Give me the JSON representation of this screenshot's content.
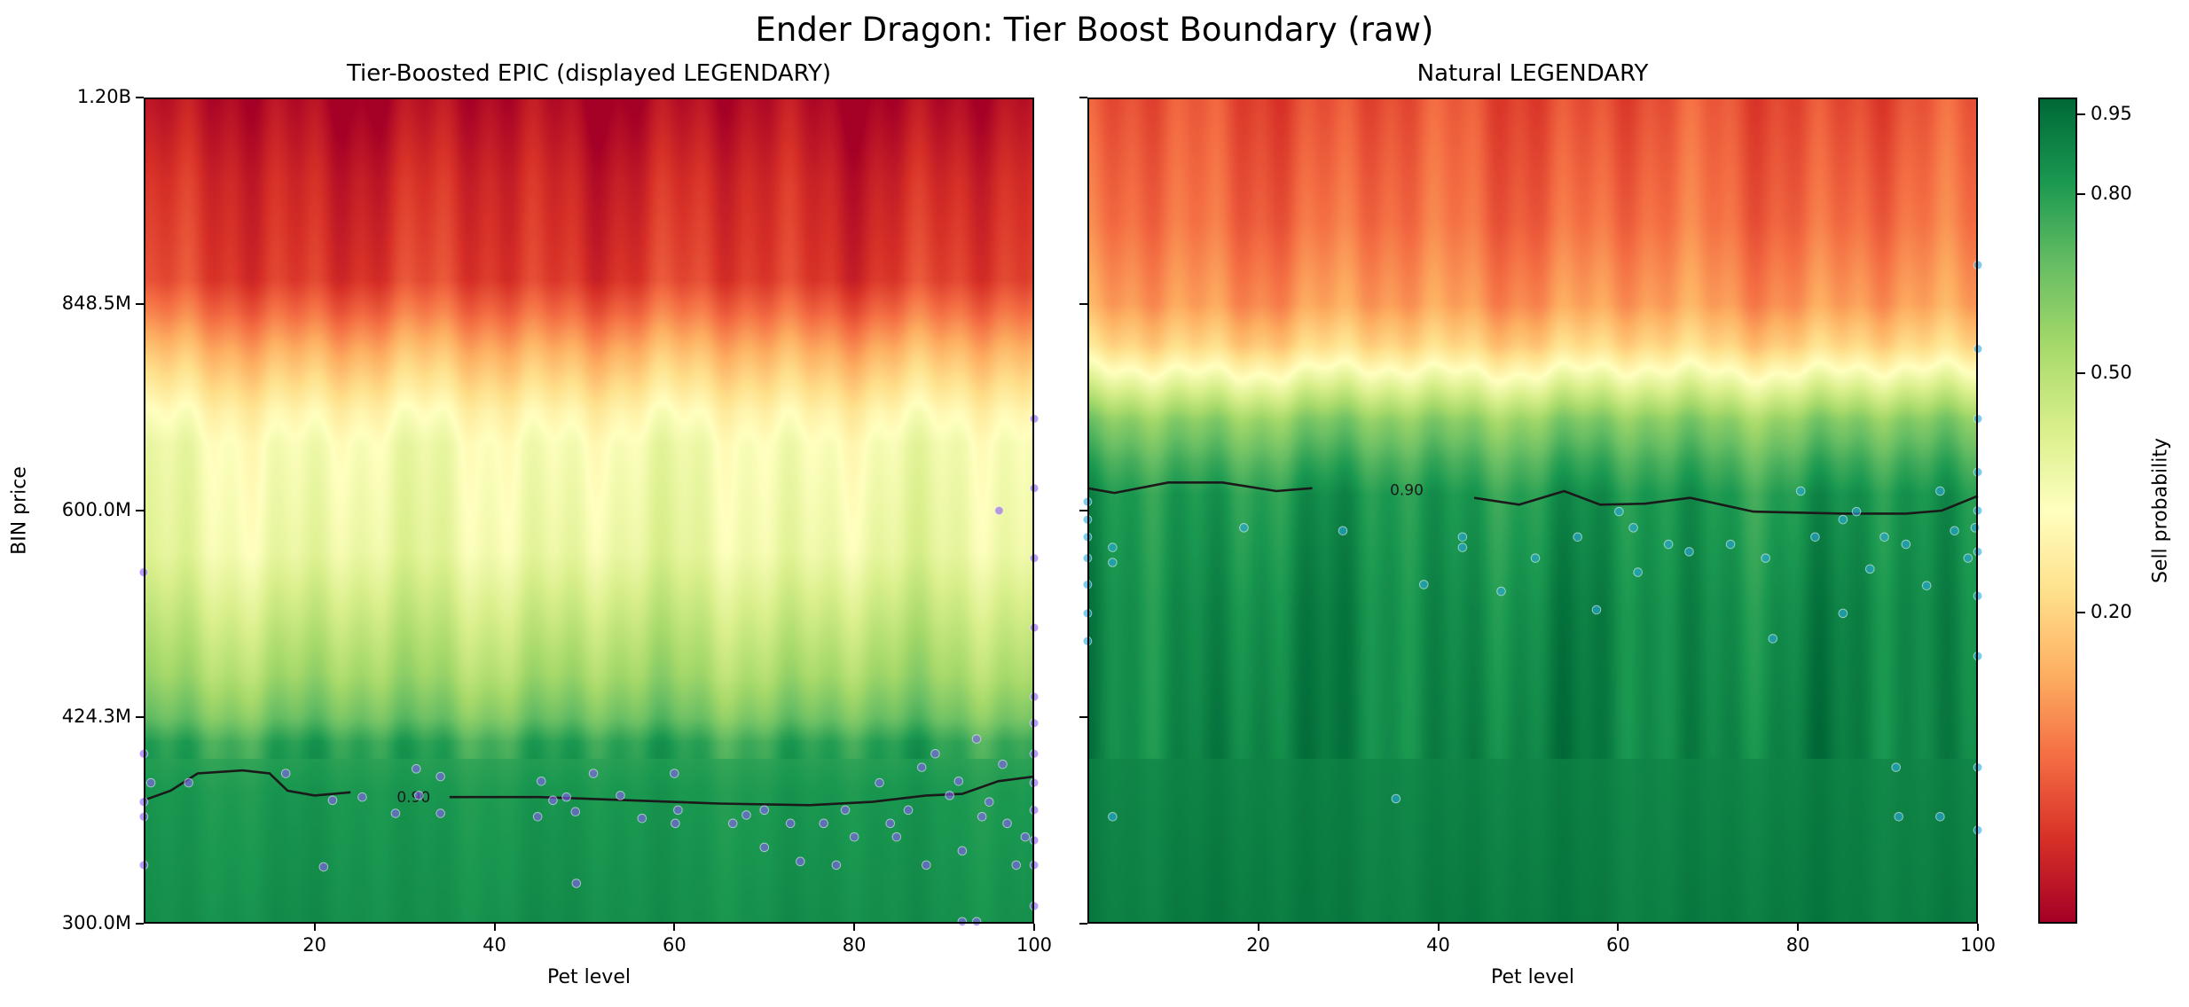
{
  "title": "Ender Dragon: Tier Boost Boundary (raw)",
  "colorbar": {
    "label": "Sell probability",
    "ticks": [
      "0.95",
      "0.80",
      "0.50",
      "0.20"
    ],
    "colormap": "RdYlGn"
  },
  "chart_data": [
    {
      "type": "heatmap",
      "title": "Tier-Boosted EPIC (displayed LEGENDARY)",
      "xlabel": "Pet level",
      "ylabel": "BIN price",
      "xlim": [
        1,
        100
      ],
      "ylim_millions": [
        300,
        1200
      ],
      "yscale": "log",
      "xticks": [
        "20",
        "40",
        "60",
        "80",
        "100"
      ],
      "yticks": [
        "300.0M",
        "424.3M",
        "600.0M",
        "848.5M",
        "1.20B"
      ],
      "grid": false,
      "contour": {
        "level": 0.9,
        "label": "0.90",
        "label_at_level": 31,
        "points": [
          [
            1,
            369
          ],
          [
            4,
            375
          ],
          [
            7,
            386
          ],
          [
            12,
            388
          ],
          [
            15,
            386
          ],
          [
            17,
            375
          ],
          [
            20,
            372
          ],
          [
            24,
            374
          ],
          [
            28,
            371
          ],
          [
            35,
            371
          ],
          [
            45,
            371
          ],
          [
            55,
            369
          ],
          [
            65,
            367
          ],
          [
            75,
            366
          ],
          [
            82,
            368
          ],
          [
            88,
            372
          ],
          [
            92,
            373
          ],
          [
            96,
            381
          ],
          [
            100,
            384
          ]
        ]
      },
      "scatter": {
        "color": "#8b5cf6",
        "points": [
          [
            1,
            399
          ],
          [
            1,
            368
          ],
          [
            1,
            359
          ],
          [
            1,
            331
          ],
          [
            1,
            541
          ],
          [
            1.8,
            380
          ],
          [
            6,
            380
          ],
          [
            16.8,
            386
          ],
          [
            21,
            330
          ],
          [
            22,
            369
          ],
          [
            25.3,
            371
          ],
          [
            29,
            361
          ],
          [
            31.3,
            389
          ],
          [
            31.6,
            372
          ],
          [
            34,
            384
          ],
          [
            34,
            361
          ],
          [
            44.8,
            359
          ],
          [
            45.2,
            381
          ],
          [
            46.5,
            369
          ],
          [
            48,
            371
          ],
          [
            49,
            362
          ],
          [
            49.1,
            321
          ],
          [
            51,
            386
          ],
          [
            54,
            372
          ],
          [
            56.4,
            358
          ],
          [
            60,
            386
          ],
          [
            60.1,
            355
          ],
          [
            60.4,
            363
          ],
          [
            66.5,
            355
          ],
          [
            68,
            360
          ],
          [
            70,
            341
          ],
          [
            70,
            363
          ],
          [
            72.9,
            355
          ],
          [
            74,
            333
          ],
          [
            76.6,
            355
          ],
          [
            78,
            331
          ],
          [
            79,
            363
          ],
          [
            80,
            347
          ],
          [
            82.8,
            380
          ],
          [
            84,
            355
          ],
          [
            84.7,
            347
          ],
          [
            86,
            363
          ],
          [
            87.5,
            390
          ],
          [
            88,
            331
          ],
          [
            89,
            399
          ],
          [
            90.6,
            372
          ],
          [
            91.6,
            381
          ],
          [
            92,
            339
          ],
          [
            93.6,
            409
          ],
          [
            94.2,
            359
          ],
          [
            95,
            368
          ],
          [
            96.5,
            392
          ],
          [
            97,
            355
          ],
          [
            98,
            331
          ],
          [
            99,
            347
          ],
          [
            96.1,
            600
          ],
          [
            100,
            439
          ],
          [
            100,
            399
          ],
          [
            100,
            363
          ],
          [
            100,
            331
          ],
          [
            100,
            309
          ],
          [
            93.6,
            301
          ],
          [
            92,
            301
          ],
          [
            100,
            700
          ],
          [
            100,
            623
          ],
          [
            100,
            554
          ],
          [
            100,
            493
          ],
          [
            100,
            420
          ],
          [
            100,
            380
          ],
          [
            100,
            345
          ]
        ]
      }
    },
    {
      "type": "heatmap",
      "title": "Natural LEGENDARY",
      "xlabel": "Pet level",
      "xlim": [
        1,
        100
      ],
      "ylim_millions": [
        300,
        1200
      ],
      "yscale": "log",
      "xticks": [
        "20",
        "40",
        "60",
        "80",
        "100"
      ],
      "grid": false,
      "contour": {
        "level": 0.9,
        "label": "0.90",
        "label_at_level": 36.5,
        "points": [
          [
            1,
            623
          ],
          [
            4,
            618
          ],
          [
            10,
            629
          ],
          [
            16,
            629
          ],
          [
            22,
            620
          ],
          [
            26,
            623
          ],
          [
            34,
            623
          ],
          [
            39,
            620
          ],
          [
            44,
            613
          ],
          [
            49,
            606
          ],
          [
            54,
            620
          ],
          [
            58,
            606
          ],
          [
            63,
            607
          ],
          [
            68,
            613
          ],
          [
            75,
            599
          ],
          [
            85,
            597
          ],
          [
            92,
            597
          ],
          [
            96,
            600
          ],
          [
            100,
            615
          ]
        ]
      },
      "scatter": {
        "color": "#29a8e0",
        "points": [
          [
            1,
            609
          ],
          [
            1,
            591
          ],
          [
            1,
            574
          ],
          [
            1,
            554
          ],
          [
            1,
            530
          ],
          [
            1,
            505
          ],
          [
            1,
            482
          ],
          [
            3.8,
            564
          ],
          [
            3.8,
            550
          ],
          [
            3.8,
            359
          ],
          [
            18.4,
            583
          ],
          [
            29.4,
            580
          ],
          [
            35.3,
            370
          ],
          [
            38.4,
            530
          ],
          [
            42.7,
            574
          ],
          [
            42.7,
            564
          ],
          [
            47,
            524
          ],
          [
            50.8,
            554
          ],
          [
            55.5,
            574
          ],
          [
            57.6,
            508
          ],
          [
            60.1,
            599
          ],
          [
            61.7,
            583
          ],
          [
            62.2,
            541
          ],
          [
            65.6,
            567
          ],
          [
            67.9,
            560
          ],
          [
            72.5,
            567
          ],
          [
            76.4,
            554
          ],
          [
            77.2,
            484
          ],
          [
            80.3,
            620
          ],
          [
            81.9,
            574
          ],
          [
            85,
            591
          ],
          [
            85,
            505
          ],
          [
            86.5,
            599
          ],
          [
            88,
            544
          ],
          [
            89.6,
            574
          ],
          [
            90.9,
            390
          ],
          [
            91.2,
            359
          ],
          [
            92,
            567
          ],
          [
            94.3,
            529
          ],
          [
            95.8,
            620
          ],
          [
            95.8,
            359
          ],
          [
            97.4,
            580
          ],
          [
            98.9,
            554
          ],
          [
            99.7,
            583
          ],
          [
            100,
            906
          ],
          [
            100,
            787
          ],
          [
            100,
            700
          ],
          [
            100,
            640
          ],
          [
            100,
            600
          ],
          [
            100,
            560
          ],
          [
            100,
            520
          ],
          [
            100,
            470
          ],
          [
            100,
            390
          ],
          [
            100,
            351
          ]
        ]
      }
    }
  ]
}
